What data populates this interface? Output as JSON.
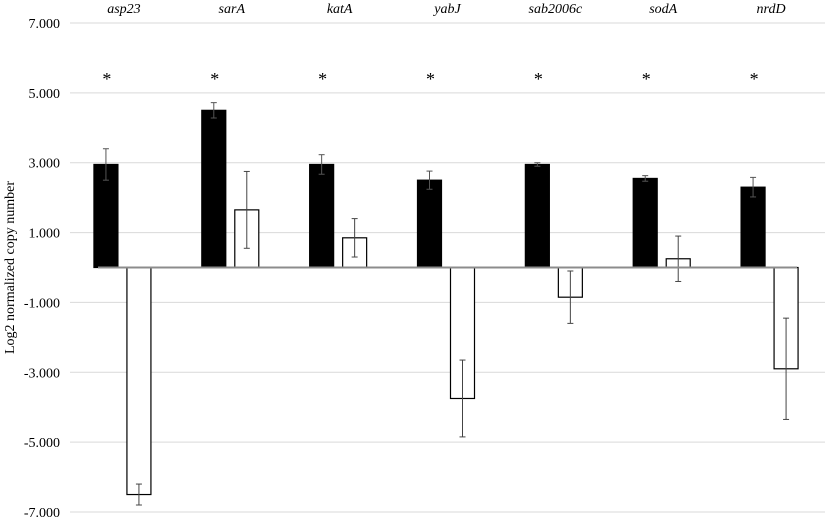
{
  "chart_data": {
    "type": "bar",
    "ylabel": "Log2 normalized copy number",
    "ylim": [
      -7,
      7
    ],
    "yticks": [
      7,
      5,
      3,
      1,
      -1,
      -3,
      -5,
      -7
    ],
    "ytick_labels": [
      "7.000",
      "5.000",
      "3.000",
      "1.000",
      "-1.000",
      "-3.000",
      "-5.000",
      "-7.000"
    ],
    "grid": true,
    "categories": [
      "asp23",
      "sarA",
      "katA",
      "yabJ",
      "sab2006c",
      "sodA",
      "nrdD"
    ],
    "significance": [
      "*",
      "*",
      "*",
      "*",
      "*",
      "*",
      "*"
    ],
    "series": [
      {
        "color": "#000000",
        "values": [
          2.95,
          4.5,
          2.95,
          2.5,
          2.95,
          2.55,
          2.3
        ],
        "errors": [
          0.45,
          0.22,
          0.28,
          0.26,
          0.05,
          0.08,
          0.28
        ]
      },
      {
        "color": "#ffffff",
        "values": [
          -6.5,
          1.65,
          0.85,
          -3.75,
          -0.85,
          0.25,
          -2.9
        ],
        "errors": [
          0.3,
          1.1,
          0.55,
          1.1,
          0.75,
          0.65,
          1.45
        ]
      }
    ]
  }
}
